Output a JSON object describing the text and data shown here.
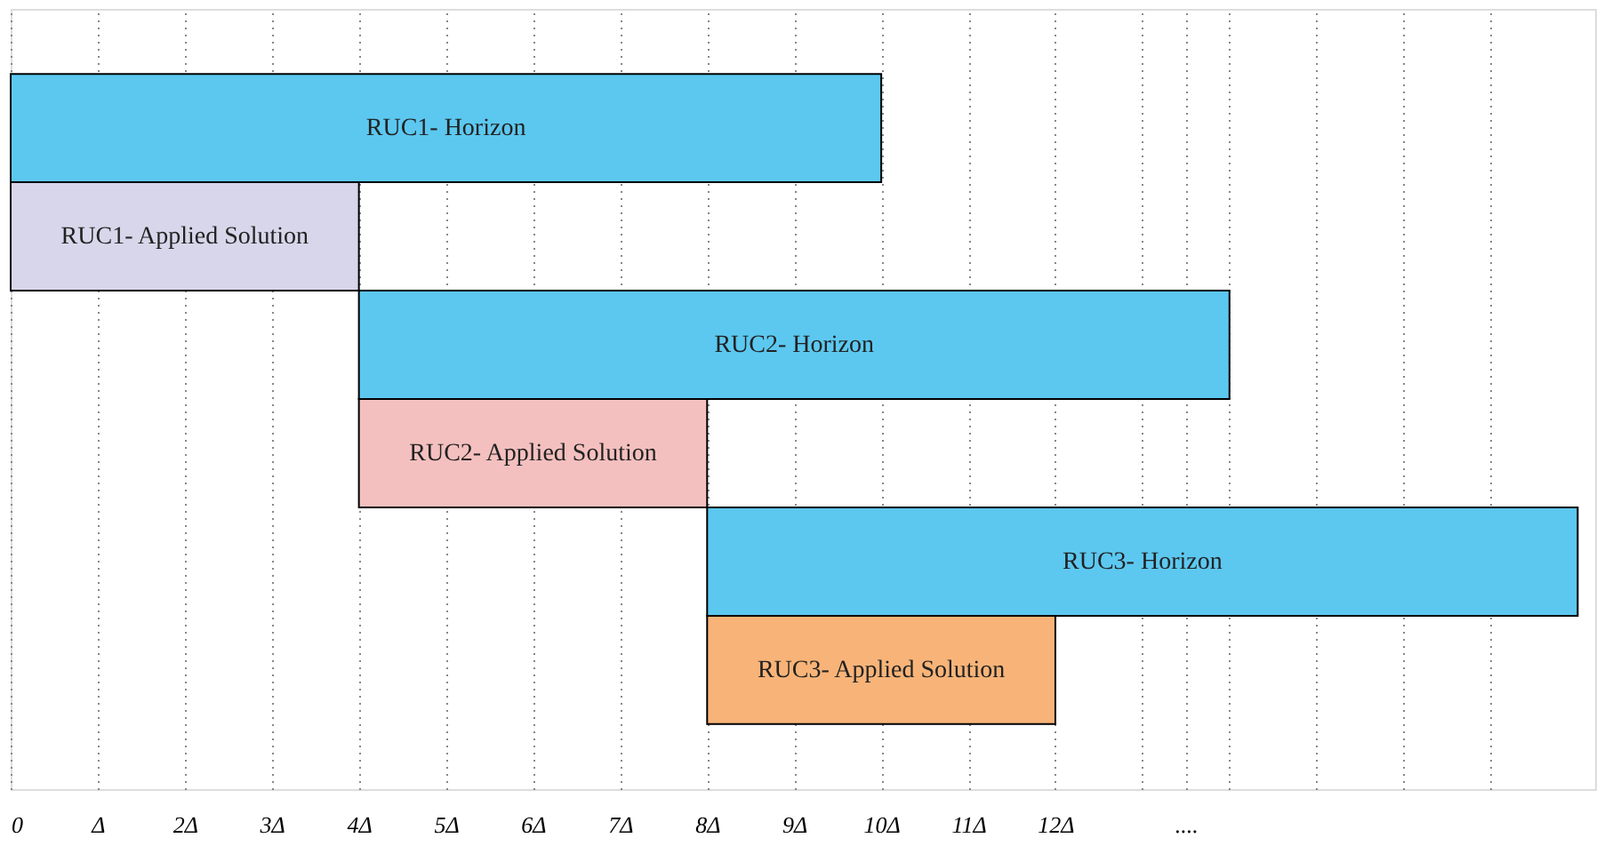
{
  "chart_data": {
    "type": "bar",
    "orientation": "horizontal",
    "categories": [
      "RUC1- Horizon",
      "RUC1- Applied Solution",
      "RUC2- Horizon",
      "RUC2- Applied Solution",
      "RUC3- Horizon",
      "RUC3- Applied Solution"
    ],
    "base": [
      0,
      0,
      4,
      4,
      8,
      8
    ],
    "values": [
      10,
      4,
      10,
      4,
      10,
      4
    ],
    "colors": [
      "#5cc8f0",
      "#d8d6ea",
      "#5cc8f0",
      "#f4c0bf",
      "#5cc8f0",
      "#f8b478"
    ],
    "xlim": [
      0,
      18.2
    ],
    "xticks": [
      0,
      {
        "value": 1,
        "label": "Δ"
      },
      {
        "value": 2,
        "label": "2Δ"
      },
      {
        "value": 3,
        "label": "3Δ"
      },
      {
        "value": 4,
        "label": "4Δ"
      },
      {
        "value": 5,
        "label": "5Δ"
      },
      {
        "value": 6,
        "label": "6Δ"
      },
      {
        "value": 7,
        "label": "7Δ"
      },
      {
        "value": 8,
        "label": "8Δ"
      },
      {
        "value": 9,
        "label": "9Δ"
      },
      {
        "value": 10,
        "label": "10Δ"
      },
      {
        "value": 11,
        "label": "11Δ"
      },
      {
        "value": 12,
        "label": "12Δ"
      },
      {
        "value": 13,
        "label": null
      },
      {
        "value": 13.5,
        "label": "...."
      },
      {
        "value": 14,
        "label": null
      },
      {
        "value": 15,
        "label": null
      },
      {
        "value": 16,
        "label": null
      },
      {
        "value": 17,
        "label": null
      }
    ],
    "grid": "x",
    "tick_labels": "x"
  }
}
